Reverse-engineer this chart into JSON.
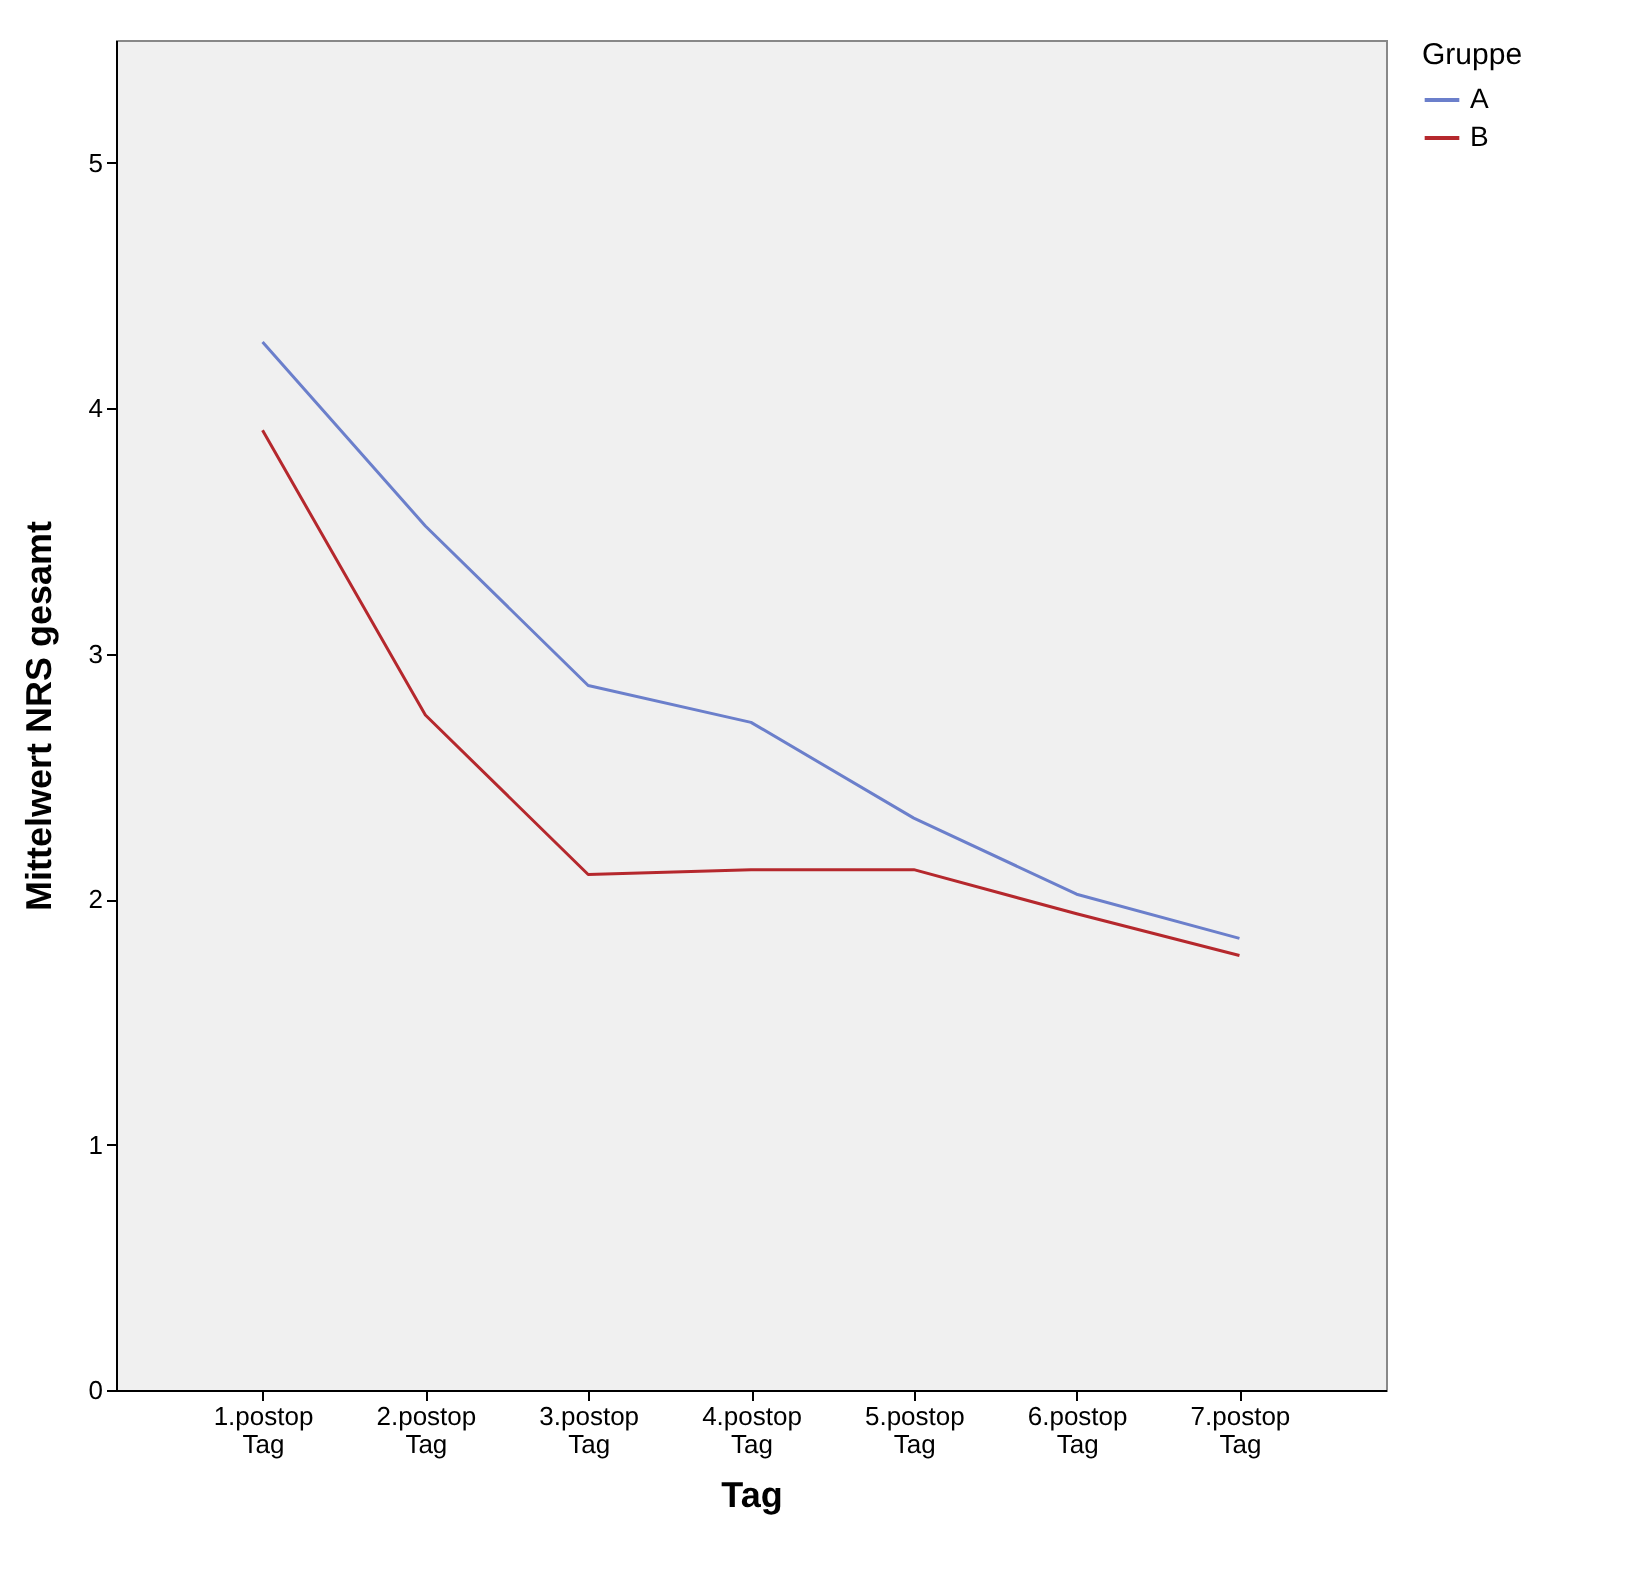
{
  "chart_data": {
    "type": "line",
    "xlabel": "Tag",
    "ylabel": "Mittelwert NRS gesamt",
    "legend_title": "Gruppe",
    "legend": "top right",
    "grid": false,
    "marker": "none",
    "line_style": "solid",
    "categories": [
      "1.postop Tag",
      "2.postop Tag",
      "3.postop Tag",
      "4.postop Tag",
      "5.postop Tag",
      "6.postop Tag",
      "7.postop Tag"
    ],
    "ylim": [
      0,
      5.5
    ],
    "yticks": [
      0,
      1,
      2,
      3,
      4,
      5
    ],
    "series": [
      {
        "name": "A",
        "color": "#6b7fcb",
        "values": [
          4.27,
          3.52,
          2.87,
          2.72,
          2.33,
          2.02,
          1.84
        ]
      },
      {
        "name": "B",
        "color": "#b5282d",
        "values": [
          3.91,
          2.75,
          2.1,
          2.12,
          2.12,
          1.94,
          1.77
        ]
      }
    ]
  }
}
